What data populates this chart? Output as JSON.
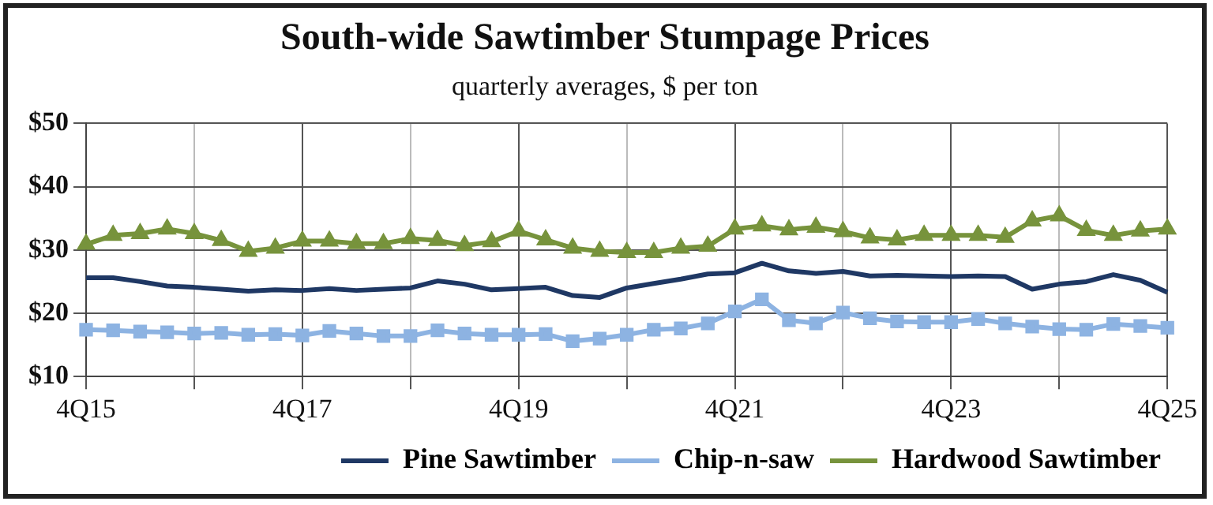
{
  "chart_data": {
    "type": "line",
    "title": "South-wide Sawtimber Stumpage Prices",
    "subtitle": "quarterly averages, $ per ton",
    "categories": [
      "4Q15",
      null,
      null,
      null,
      null,
      null,
      null,
      null,
      "4Q17",
      null,
      null,
      null,
      null,
      null,
      null,
      null,
      "4Q19",
      null,
      null,
      null,
      null,
      null,
      null,
      null,
      "4Q21",
      null,
      null,
      null,
      null,
      null,
      null,
      null,
      "4Q23",
      null,
      null,
      null,
      null,
      null,
      null,
      null,
      "4Q25"
    ],
    "series": [
      {
        "name": "Pine Sawtimber",
        "color": "#1f3864",
        "marker": "none",
        "values": [
          25.6,
          25.6,
          25,
          24.3,
          24.1,
          23.8,
          23.5,
          23.7,
          23.6,
          23.9,
          23.6,
          23.8,
          24.0,
          25.1,
          24.6,
          23.7,
          23.9,
          24.1,
          22.8,
          22.5,
          24.0,
          24.7,
          25.4,
          26.2,
          26.4,
          27.9,
          26.7,
          26.3,
          26.6,
          25.9,
          26.0,
          25.9,
          25.8,
          25.9,
          25.8,
          23.8,
          24.6,
          25.0,
          26.1,
          25.2,
          23.3
        ]
      },
      {
        "name": "Chip-n-saw",
        "color": "#8db3e2",
        "marker": "square",
        "values": [
          17.4,
          17.3,
          17.1,
          17.0,
          16.8,
          16.9,
          16.6,
          16.7,
          16.5,
          17.2,
          16.8,
          16.4,
          16.4,
          17.3,
          16.8,
          16.6,
          16.6,
          16.7,
          15.6,
          16.0,
          16.6,
          17.4,
          17.6,
          18.4,
          20.3,
          22.2,
          18.9,
          18.4,
          20.1,
          19.2,
          18.7,
          18.6,
          18.6,
          19.1,
          18.4,
          17.9,
          17.5,
          17.4,
          18.3,
          18.0,
          17.7
        ]
      },
      {
        "name": "Hardwood Sawtimber",
        "color": "#77933c",
        "marker": "triangle",
        "values": [
          30.9,
          32.3,
          32.6,
          33.3,
          32.6,
          31.5,
          29.8,
          30.3,
          31.4,
          31.4,
          31.0,
          31.0,
          31.8,
          31.5,
          30.7,
          31.3,
          33.0,
          31.6,
          30.3,
          29.8,
          29.6,
          29.6,
          30.3,
          30.6,
          33.3,
          33.8,
          33.2,
          33.6,
          32.9,
          31.9,
          31.6,
          32.3,
          32.3,
          32.3,
          32.0,
          34.6,
          35.4,
          33.1,
          32.3,
          33.0,
          33.3
        ]
      }
    ],
    "ylim": [
      10,
      50
    ],
    "yticks": [
      {
        "value": 10,
        "label": "$10"
      },
      {
        "value": 20,
        "label": "$20"
      },
      {
        "value": 30,
        "label": "$30"
      },
      {
        "value": 40,
        "label": "$40"
      },
      {
        "value": 50,
        "label": "$50"
      }
    ],
    "grid": true,
    "legend": "bottom right"
  }
}
